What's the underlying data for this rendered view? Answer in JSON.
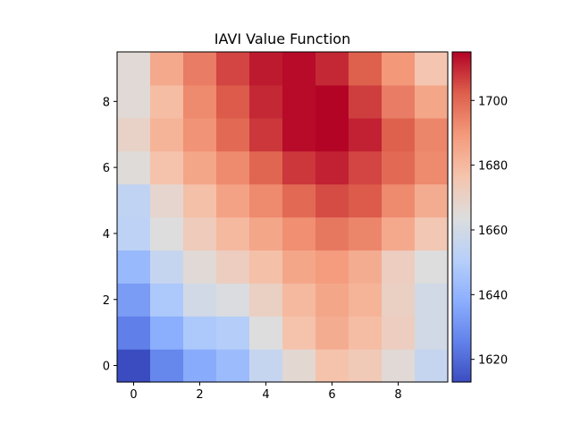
{
  "chart_data": {
    "type": "heatmap",
    "title": "IAVI Value Function",
    "xlabel": "",
    "ylabel": "",
    "colormap": "coolwarm",
    "vmin": 1613,
    "vmax": 1715,
    "x_ticks": [
      "0",
      "2",
      "4",
      "6",
      "8"
    ],
    "y_ticks": [
      "0",
      "2",
      "4",
      "6",
      "8"
    ],
    "colorbar_ticks": [
      "1620",
      "1640",
      "1660",
      "1680",
      "1700"
    ],
    "colorbar_tick_values": [
      1620,
      1640,
      1660,
      1680,
      1700
    ],
    "x_range": [
      -0.5,
      9.5
    ],
    "y_range": [
      -0.5,
      9.5
    ],
    "origin": "lower",
    "grid": false,
    "rows": [
      [
        1613,
        1627,
        1637,
        1643,
        1656,
        1667,
        1677,
        1674,
        1666,
        1656
      ],
      [
        1625,
        1638,
        1648,
        1650,
        1664,
        1677,
        1684,
        1679,
        1672,
        1660
      ],
      [
        1633,
        1648,
        1660,
        1663,
        1671,
        1680,
        1686,
        1682,
        1671,
        1660
      ],
      [
        1642,
        1656,
        1666,
        1672,
        1678,
        1686,
        1689,
        1684,
        1672,
        1664
      ],
      [
        1653,
        1664,
        1673,
        1680,
        1686,
        1692,
        1697,
        1694,
        1685,
        1675
      ],
      [
        1654,
        1668,
        1678,
        1687,
        1693,
        1700,
        1705,
        1703,
        1693,
        1684
      ],
      [
        1665,
        1677,
        1686,
        1693,
        1701,
        1708,
        1711,
        1706,
        1700,
        1693
      ],
      [
        1670,
        1682,
        1691,
        1700,
        1708,
        1714,
        1715,
        1711,
        1702,
        1694
      ],
      [
        1666,
        1679,
        1693,
        1703,
        1710,
        1714,
        1715,
        1707,
        1696,
        1686
      ],
      [
        1666,
        1685,
        1696,
        1706,
        1712,
        1714,
        1710,
        1702,
        1690,
        1676
      ]
    ]
  }
}
